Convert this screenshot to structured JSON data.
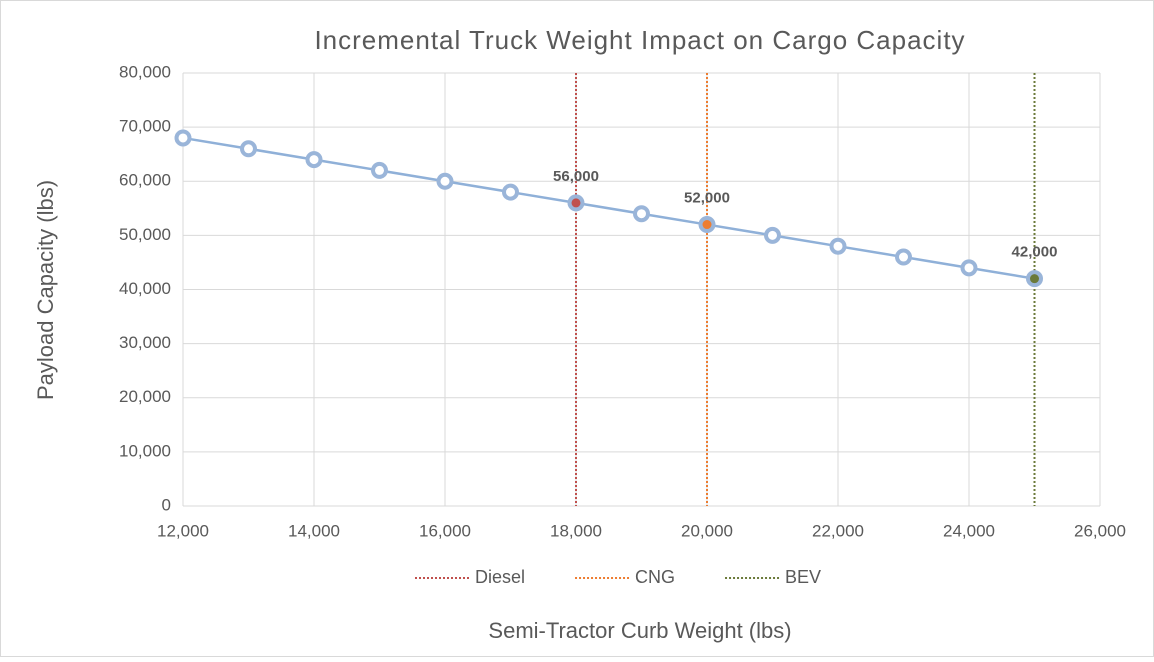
{
  "chart_data": {
    "type": "line",
    "title": "Incremental Truck Weight Impact on Cargo Capacity",
    "x_label": "Semi-Tractor Curb Weight (lbs)",
    "y_label": "Payload Capacity (lbs)",
    "x": [
      12000,
      13000,
      14000,
      15000,
      16000,
      17000,
      18000,
      19000,
      20000,
      21000,
      22000,
      23000,
      24000,
      25000
    ],
    "series": [
      {
        "color": "#8fb0d8",
        "values": [
          68000,
          66000,
          64000,
          62000,
          60000,
          58000,
          56000,
          54000,
          52000,
          50000,
          48000,
          46000,
          44000,
          42000
        ],
        "value_labels": [
          null,
          null,
          null,
          null,
          null,
          null,
          "56,000",
          null,
          "52,000",
          null,
          null,
          null,
          null,
          "42,000"
        ]
      }
    ],
    "vlines": [
      {
        "name": "Diesel",
        "x": 18000,
        "color": "#c0504d"
      },
      {
        "name": "CNG",
        "x": 20000,
        "color": "#ed7d31"
      },
      {
        "name": "BEV",
        "x": 25000,
        "color": "#6b7a3a"
      }
    ],
    "xlim": [
      12000,
      26000
    ],
    "xticks": [
      {
        "value": 12000,
        "label": "12,000"
      },
      {
        "value": 14000,
        "label": "14,000"
      },
      {
        "value": 16000,
        "label": "16,000"
      },
      {
        "value": 18000,
        "label": "18,000"
      },
      {
        "value": 20000,
        "label": "20,000"
      },
      {
        "value": 22000,
        "label": "22,000"
      },
      {
        "value": 24000,
        "label": "24,000"
      },
      {
        "value": 26000,
        "label": "26,000"
      }
    ],
    "ylim": [
      0,
      80000
    ],
    "yticks": [
      0,
      {
        "value": 10000,
        "label": "10,000"
      },
      {
        "value": 20000,
        "label": "20,000"
      },
      {
        "value": 30000,
        "label": "30,000"
      },
      {
        "value": 40000,
        "label": "40,000"
      },
      {
        "value": 50000,
        "label": "50,000"
      },
      {
        "value": 60000,
        "label": "60,000"
      },
      {
        "value": 70000,
        "label": "70,000"
      },
      {
        "value": 80000,
        "label": "80,000"
      }
    ],
    "grid": true,
    "legend": "bottom"
  }
}
